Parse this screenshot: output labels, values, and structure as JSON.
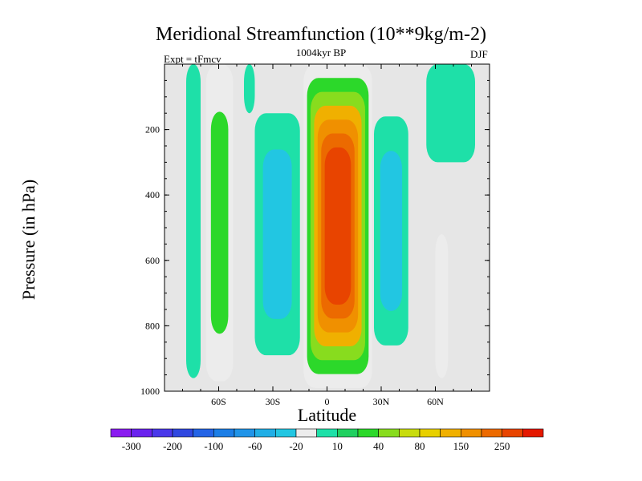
{
  "chart_data": {
    "type": "heatmap",
    "title": "Meridional Streamfunction (10**9kg/m-2)",
    "subtitle": "1004kyr BP",
    "left_note": "Expt = tFmcv",
    "right_note": "DJF",
    "xlabel": "Latitude",
    "ylabel": "Pressure (in hPa)",
    "xlim": [
      -90,
      90
    ],
    "ylim": [
      1000,
      0
    ],
    "x_ticks": [
      {
        "value": -60,
        "label": "60S"
      },
      {
        "value": -30,
        "label": "30S"
      },
      {
        "value": 0,
        "label": "0"
      },
      {
        "value": 30,
        "label": "30N"
      },
      {
        "value": 60,
        "label": "60N"
      }
    ],
    "y_ticks": [
      {
        "value": 200,
        "label": "200"
      },
      {
        "value": 400,
        "label": "400"
      },
      {
        "value": 600,
        "label": "600"
      },
      {
        "value": 800,
        "label": "800"
      },
      {
        "value": 1000,
        "label": "1000"
      }
    ],
    "background_color": "#e6e6e6",
    "colorbar": {
      "colors": [
        "#8a1cf0",
        "#6a22ee",
        "#4a38ea",
        "#3048e0",
        "#2464e6",
        "#1c7ee6",
        "#2094e8",
        "#20aee6",
        "#22c6e2",
        "#ececec",
        "#1ee0a8",
        "#20d060",
        "#2cd82a",
        "#88dc1e",
        "#c8dc0e",
        "#e8d000",
        "#f0b000",
        "#f09000",
        "#ec6a00",
        "#e84400",
        "#e41800"
      ],
      "labels": [
        "-300",
        "-200",
        "-100",
        "-60",
        "-20",
        "10",
        "40",
        "80",
        "150",
        "250"
      ]
    },
    "fields": [
      {
        "name": "SH high-latitude cell",
        "lat": [
          -78,
          -70
        ],
        "p": [
          0,
          960
        ],
        "levels": [
          -10
        ]
      },
      {
        "name": "SH mid-latitude cell",
        "lat": [
          -67,
          -52
        ],
        "p": [
          0,
          970
        ],
        "levels": [
          5,
          25
        ]
      },
      {
        "name": "SH upper-level branch",
        "lat": [
          -46,
          -40
        ],
        "p": [
          0,
          150
        ],
        "levels": [
          -10
        ]
      },
      {
        "name": "SH subtropical cell",
        "lat": [
          -40,
          -15
        ],
        "p": [
          150,
          890
        ],
        "levels": [
          -10,
          -25
        ]
      },
      {
        "name": "Hadley cell core",
        "lat": [
          -13,
          25
        ],
        "p": [
          0,
          990
        ],
        "levels": [
          5,
          20,
          50,
          100,
          150,
          200,
          260
        ]
      },
      {
        "name": "NH subtropical cell",
        "lat": [
          26,
          45
        ],
        "p": [
          160,
          860
        ],
        "levels": [
          -10,
          -25
        ]
      },
      {
        "name": "NH mid-latitude cell",
        "lat": [
          60,
          67
        ],
        "p": [
          520,
          960
        ],
        "levels": [
          5
        ]
      },
      {
        "name": "NH polar branch",
        "lat": [
          55,
          82
        ],
        "p": [
          0,
          300
        ],
        "levels": [
          -10
        ]
      }
    ]
  }
}
